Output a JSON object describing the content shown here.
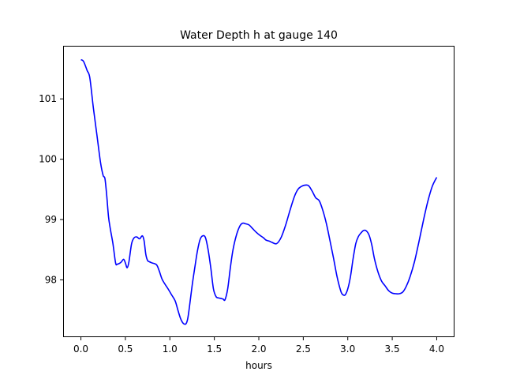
{
  "chart_data": {
    "type": "line",
    "title": "Water Depth h at gauge 140",
    "xlabel": "hours",
    "ylabel": "",
    "xlim": [
      -0.2,
      4.2
    ],
    "ylim": [
      97.05,
      101.88
    ],
    "xticks": [
      0.0,
      0.5,
      1.0,
      1.5,
      2.0,
      2.5,
      3.0,
      3.5,
      4.0
    ],
    "xtick_labels": [
      "0.0",
      "0.5",
      "1.0",
      "1.5",
      "2.0",
      "2.5",
      "3.0",
      "3.5",
      "4.0"
    ],
    "yticks": [
      98,
      99,
      100,
      101
    ],
    "ytick_labels": [
      "98",
      "99",
      "100",
      "101"
    ],
    "grid": false,
    "series": [
      {
        "name": "",
        "color": "#0000ff",
        "x": [
          0.0,
          0.03,
          0.07,
          0.1,
          0.14,
          0.18,
          0.22,
          0.25,
          0.27,
          0.29,
          0.31,
          0.33,
          0.36,
          0.39,
          0.41,
          0.45,
          0.48,
          0.5,
          0.52,
          0.54,
          0.57,
          0.6,
          0.63,
          0.66,
          0.69,
          0.71,
          0.73,
          0.75,
          0.77,
          0.8,
          0.85,
          0.88,
          0.91,
          0.94,
          0.98,
          1.02,
          1.06,
          1.09,
          1.12,
          1.15,
          1.18,
          1.2,
          1.22,
          1.25,
          1.28,
          1.31,
          1.34,
          1.37,
          1.4,
          1.43,
          1.46,
          1.49,
          1.52,
          1.55,
          1.58,
          1.6,
          1.62,
          1.65,
          1.68,
          1.71,
          1.75,
          1.79,
          1.82,
          1.85,
          1.89,
          1.93,
          1.97,
          2.01,
          2.05,
          2.08,
          2.12,
          2.15,
          2.2,
          2.25,
          2.3,
          2.35,
          2.4,
          2.44,
          2.48,
          2.52,
          2.56,
          2.6,
          2.64,
          2.68,
          2.72,
          2.76,
          2.8,
          2.84,
          2.88,
          2.92,
          2.94,
          2.97,
          3.0,
          3.03,
          3.06,
          3.09,
          3.12,
          3.15,
          3.18,
          3.21,
          3.24,
          3.27,
          3.3,
          3.34,
          3.38,
          3.42,
          3.46,
          3.5,
          3.54,
          3.58,
          3.62,
          3.66,
          3.7,
          3.75,
          3.8,
          3.85,
          3.9,
          3.95,
          4.0
        ],
        "y": [
          101.65,
          101.62,
          101.47,
          101.35,
          100.85,
          100.4,
          99.95,
          99.73,
          99.68,
          99.4,
          99.05,
          98.85,
          98.6,
          98.28,
          98.26,
          98.29,
          98.34,
          98.28,
          98.2,
          98.3,
          98.6,
          98.7,
          98.71,
          98.68,
          98.73,
          98.65,
          98.42,
          98.32,
          98.3,
          98.28,
          98.25,
          98.15,
          98.02,
          97.94,
          97.85,
          97.75,
          97.65,
          97.5,
          97.36,
          97.28,
          97.27,
          97.35,
          97.55,
          97.9,
          98.2,
          98.48,
          98.67,
          98.73,
          98.7,
          98.5,
          98.2,
          97.85,
          97.72,
          97.7,
          97.69,
          97.68,
          97.67,
          97.85,
          98.2,
          98.5,
          98.75,
          98.9,
          98.94,
          98.93,
          98.91,
          98.85,
          98.79,
          98.74,
          98.7,
          98.66,
          98.64,
          98.62,
          98.6,
          98.7,
          98.9,
          99.15,
          99.38,
          99.5,
          99.55,
          99.57,
          99.56,
          99.47,
          99.36,
          99.31,
          99.15,
          98.93,
          98.65,
          98.36,
          98.05,
          97.82,
          97.76,
          97.75,
          97.85,
          98.05,
          98.35,
          98.6,
          98.72,
          98.78,
          98.82,
          98.81,
          98.74,
          98.58,
          98.35,
          98.13,
          97.98,
          97.9,
          97.82,
          97.78,
          97.77,
          97.77,
          97.8,
          97.9,
          98.05,
          98.3,
          98.63,
          98.98,
          99.3,
          99.55,
          99.7
        ]
      }
    ]
  }
}
